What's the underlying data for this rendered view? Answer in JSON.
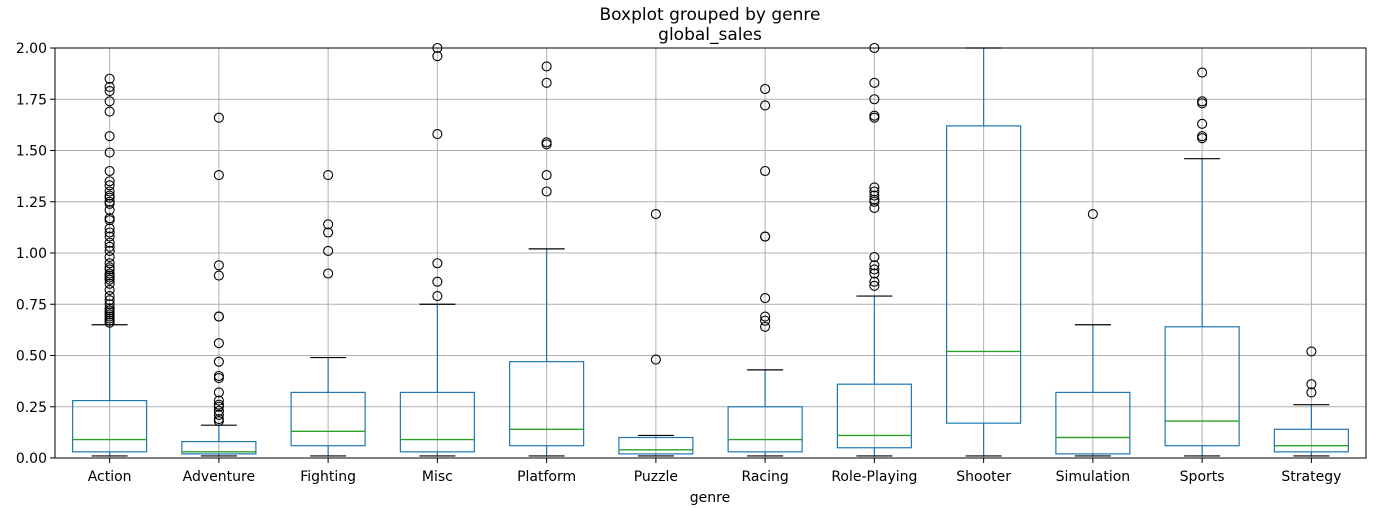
{
  "chart_data": {
    "type": "boxplot",
    "suptitle": "Boxplot grouped by genre",
    "title": "global_sales",
    "xlabel": "genre",
    "ylabel": "",
    "ylim": [
      0,
      2.0
    ],
    "yticks": [
      "0.00",
      "0.25",
      "0.50",
      "0.75",
      "1.00",
      "1.25",
      "1.50",
      "1.75",
      "2.00"
    ],
    "grid": true,
    "colors": {
      "box": "#1f77b4",
      "median": "#2ca02c",
      "cap": "#000000",
      "grid": "#b0b0b0",
      "flier": "#000000"
    },
    "categories": [
      "Action",
      "Adventure",
      "Fighting",
      "Misc",
      "Platform",
      "Puzzle",
      "Racing",
      "Role-Playing",
      "Shooter",
      "Simulation",
      "Sports",
      "Strategy"
    ],
    "boxes": [
      {
        "name": "Action",
        "whislo": 0.01,
        "q1": 0.03,
        "med": 0.09,
        "q3": 0.28,
        "whishi": 0.65,
        "fliers": [
          1.85,
          1.81,
          1.79,
          1.74,
          1.69,
          1.57,
          1.49,
          1.4,
          1.35,
          1.33,
          1.3,
          1.28,
          1.27,
          1.25,
          1.24,
          1.21,
          1.17,
          1.16,
          1.12,
          1.1,
          1.08,
          1.05,
          1.03,
          1.01,
          0.98,
          0.95,
          0.93,
          0.92,
          0.9,
          0.89,
          0.88,
          0.87,
          0.85,
          0.82,
          0.79,
          0.77,
          0.75,
          0.73,
          0.72,
          0.71,
          0.7,
          0.69,
          0.68,
          0.67,
          0.66
        ]
      },
      {
        "name": "Adventure",
        "whislo": 0.01,
        "q1": 0.02,
        "med": 0.03,
        "q3": 0.08,
        "whishi": 0.16,
        "fliers": [
          1.66,
          1.38,
          0.94,
          0.89,
          0.69,
          0.69,
          0.56,
          0.47,
          0.4,
          0.39,
          0.32,
          0.28,
          0.26,
          0.25,
          0.23,
          0.21,
          0.19,
          0.18
        ]
      },
      {
        "name": "Fighting",
        "whislo": 0.01,
        "q1": 0.06,
        "med": 0.13,
        "q3": 0.32,
        "whishi": 0.49,
        "fliers": [
          1.38,
          1.14,
          1.1,
          1.01,
          0.9
        ]
      },
      {
        "name": "Misc",
        "whislo": 0.01,
        "q1": 0.03,
        "med": 0.09,
        "q3": 0.32,
        "whishi": 0.75,
        "fliers": [
          2.0,
          1.96,
          1.58,
          0.95,
          0.86,
          0.79
        ]
      },
      {
        "name": "Platform",
        "whislo": 0.01,
        "q1": 0.06,
        "med": 0.14,
        "q3": 0.47,
        "whishi": 1.02,
        "fliers": [
          1.91,
          1.83,
          1.54,
          1.53,
          1.38,
          1.3
        ]
      },
      {
        "name": "Puzzle",
        "whislo": 0.01,
        "q1": 0.02,
        "med": 0.04,
        "q3": 0.1,
        "whishi": 0.11,
        "fliers": [
          1.19,
          0.48
        ]
      },
      {
        "name": "Racing",
        "whislo": 0.01,
        "q1": 0.03,
        "med": 0.09,
        "q3": 0.25,
        "whishi": 0.43,
        "fliers": [
          1.8,
          1.72,
          1.4,
          1.08,
          1.08,
          0.78,
          0.69,
          0.67,
          0.64
        ]
      },
      {
        "name": "Role-Playing",
        "whislo": 0.01,
        "q1": 0.05,
        "med": 0.11,
        "q3": 0.36,
        "whishi": 0.79,
        "fliers": [
          2.0,
          1.83,
          1.75,
          1.67,
          1.66,
          1.32,
          1.3,
          1.28,
          1.26,
          1.25,
          1.22,
          0.98,
          0.94,
          0.92,
          0.9,
          0.86,
          0.84
        ]
      },
      {
        "name": "Shooter",
        "whislo": 0.01,
        "q1": 0.17,
        "med": 0.52,
        "q3": 1.62,
        "whishi": 2.0,
        "fliers": []
      },
      {
        "name": "Simulation",
        "whislo": 0.01,
        "q1": 0.02,
        "med": 0.1,
        "q3": 0.32,
        "whishi": 0.65,
        "fliers": [
          1.19
        ]
      },
      {
        "name": "Sports",
        "whislo": 0.01,
        "q1": 0.06,
        "med": 0.18,
        "q3": 0.64,
        "whishi": 1.46,
        "fliers": [
          1.88,
          1.74,
          1.73,
          1.63,
          1.57,
          1.56
        ]
      },
      {
        "name": "Strategy",
        "whislo": 0.01,
        "q1": 0.03,
        "med": 0.06,
        "q3": 0.14,
        "whishi": 0.26,
        "fliers": [
          0.52,
          0.36,
          0.32
        ]
      }
    ]
  }
}
